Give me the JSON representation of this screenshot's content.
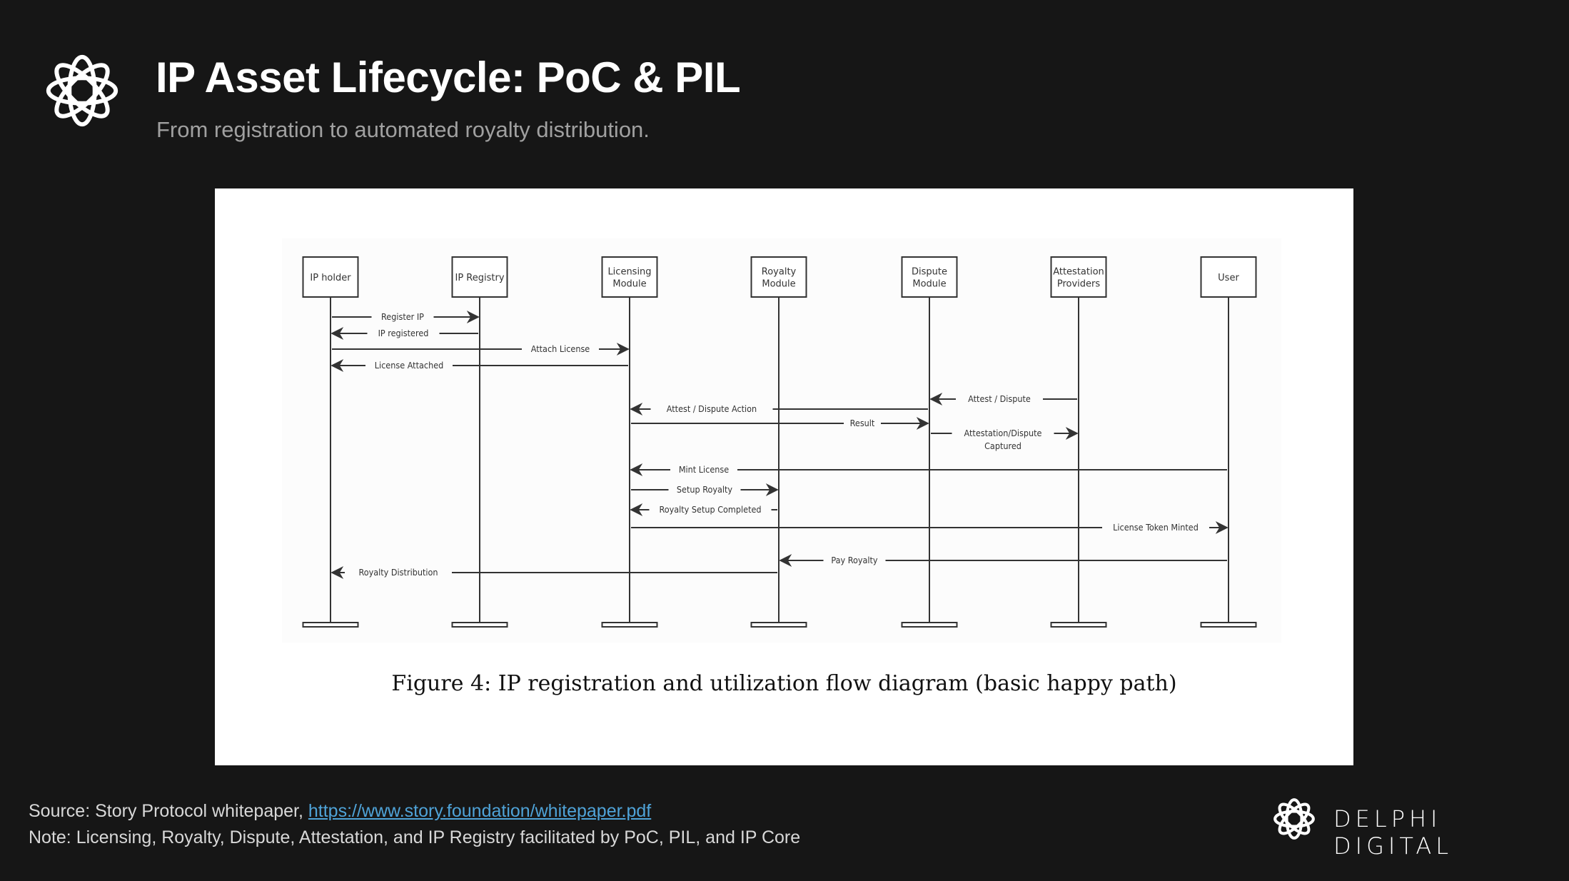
{
  "header": {
    "title": "IP Asset Lifecycle: PoC & PIL",
    "subtitle": "From registration to automated royalty distribution."
  },
  "diagram": {
    "participants": [
      "IP holder",
      "IP Registry",
      "Licensing\nModule",
      "Royalty\nModule",
      "Dispute\nModule",
      "Attestation\nProviders",
      "User"
    ],
    "messages": [
      {
        "from": 0,
        "to": 1,
        "label": "Register IP"
      },
      {
        "from": 1,
        "to": 0,
        "label": "IP registered"
      },
      {
        "from": 0,
        "to": 2,
        "label": "Attach License"
      },
      {
        "from": 2,
        "to": 0,
        "label": "License Attached"
      },
      {
        "from": 5,
        "to": 4,
        "label": "Attest / Dispute"
      },
      {
        "from": 4,
        "to": 2,
        "label": "Attest / Dispute Action"
      },
      {
        "from": 2,
        "to": 4,
        "label": "Result"
      },
      {
        "from": 4,
        "to": 5,
        "label": "Attestation/Dispute\nCaptured"
      },
      {
        "from": 6,
        "to": 2,
        "label": "Mint License"
      },
      {
        "from": 2,
        "to": 3,
        "label": "Setup Royalty"
      },
      {
        "from": 3,
        "to": 2,
        "label": "Royalty Setup Completed"
      },
      {
        "from": 2,
        "to": 6,
        "label": "License Token Minted"
      },
      {
        "from": 6,
        "to": 3,
        "label": "Pay Royalty"
      },
      {
        "from": 3,
        "to": 0,
        "label": "Royalty Distribution"
      }
    ],
    "caption": "Figure 4: IP registration and utilization flow diagram (basic happy path)"
  },
  "footer": {
    "source_prefix": "Source: Story Protocol whitepaper, ",
    "source_link": "https://www.story.foundation/whitepaper.pdf",
    "note": "Note: Licensing, Royalty, Dispute, Attestation, and IP Registry facilitated by PoC, PIL, and IP Core",
    "brand": "DELPHI DIGITAL"
  },
  "colors": {
    "background": "#161616",
    "link": "#4fa3d8",
    "diagram_line": "#333333"
  },
  "icons": {
    "logo": "rosette-knot-icon"
  }
}
